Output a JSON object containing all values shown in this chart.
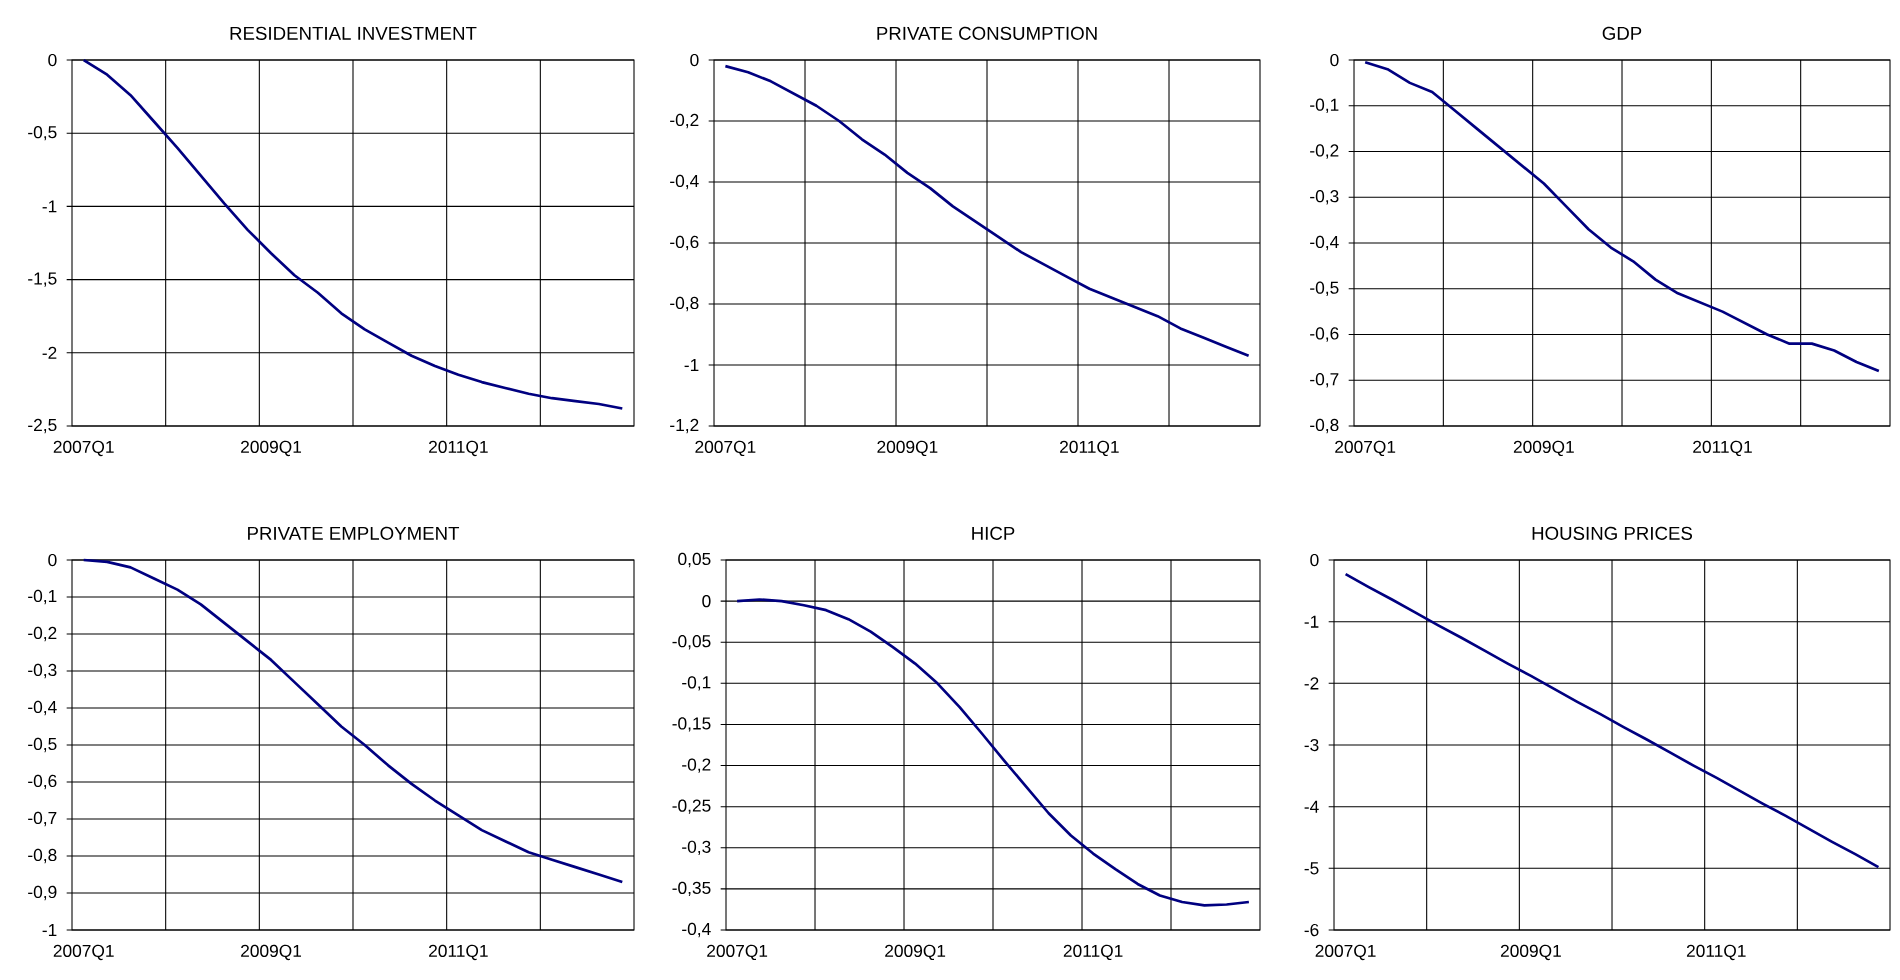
{
  "chart_data": [
    {
      "type": "line",
      "title": "RESIDENTIAL INVESTMENT",
      "categories": [
        "2007Q1",
        null,
        null,
        null,
        null,
        null,
        null,
        null,
        "2009Q1",
        null,
        null,
        null,
        null,
        null,
        null,
        null,
        "2011Q1",
        null,
        null,
        null,
        null,
        null,
        null,
        null
      ],
      "color": "#000080",
      "grid": true,
      "ylim": [
        -2.5,
        0
      ],
      "yticks": [
        0,
        {
          "value": -0.5,
          "label": "-0,5"
        },
        -1,
        {
          "value": -1.5,
          "label": "-1,5"
        },
        -2,
        {
          "value": -2.5,
          "label": "-2,5"
        }
      ],
      "values": [
        0,
        -0.1,
        -0.24,
        -0.42,
        -0.6,
        -0.79,
        -0.98,
        -1.16,
        -1.32,
        -1.47,
        -1.59,
        -1.73,
        -1.84,
        -1.93,
        -2.02,
        -2.09,
        -2.15,
        -2.2,
        -2.24,
        -2.28,
        -2.31,
        -2.33,
        -2.35,
        -2.38
      ]
    },
    {
      "type": "line",
      "title": "PRIVATE CONSUMPTION",
      "categories": [
        "2007Q1",
        null,
        null,
        null,
        null,
        null,
        null,
        null,
        "2009Q1",
        null,
        null,
        null,
        null,
        null,
        null,
        null,
        "2011Q1",
        null,
        null,
        null,
        null,
        null,
        null,
        null
      ],
      "color": "#000080",
      "grid": true,
      "ylim": [
        -1.2,
        0
      ],
      "yticks": [
        0,
        {
          "value": -0.2,
          "label": "-0,2"
        },
        {
          "value": -0.4,
          "label": "-0,4"
        },
        {
          "value": -0.6,
          "label": "-0,6"
        },
        {
          "value": -0.8,
          "label": "-0,8"
        },
        -1,
        {
          "value": -1.2,
          "label": "-1,2"
        }
      ],
      "values": [
        -0.02,
        -0.04,
        -0.07,
        -0.11,
        -0.15,
        -0.2,
        -0.26,
        -0.31,
        -0.37,
        -0.42,
        -0.48,
        -0.53,
        -0.58,
        -0.63,
        -0.67,
        -0.71,
        -0.75,
        -0.78,
        -0.81,
        -0.84,
        -0.88,
        -0.91,
        -0.94,
        -0.97
      ]
    },
    {
      "type": "line",
      "title": "GDP",
      "categories": [
        "2007Q1",
        null,
        null,
        null,
        null,
        null,
        null,
        null,
        "2009Q1",
        null,
        null,
        null,
        null,
        null,
        null,
        null,
        "2011Q1",
        null,
        null,
        null,
        null,
        null,
        null,
        null
      ],
      "color": "#000080",
      "grid": true,
      "ylim": [
        -0.8,
        0
      ],
      "yticks": [
        0,
        {
          "value": -0.1,
          "label": "-0,1"
        },
        {
          "value": -0.2,
          "label": "-0,2"
        },
        {
          "value": -0.3,
          "label": "-0,3"
        },
        {
          "value": -0.4,
          "label": "-0,4"
        },
        {
          "value": -0.5,
          "label": "-0,5"
        },
        {
          "value": -0.6,
          "label": "-0,6"
        },
        {
          "value": -0.7,
          "label": "-0,7"
        },
        {
          "value": -0.8,
          "label": "-0,8"
        }
      ],
      "values": [
        -0.005,
        -0.02,
        -0.05,
        -0.07,
        -0.11,
        -0.15,
        -0.19,
        -0.23,
        -0.27,
        -0.32,
        -0.37,
        -0.41,
        -0.44,
        -0.48,
        -0.51,
        -0.53,
        -0.55,
        -0.575,
        -0.6,
        -0.62,
        -0.62,
        -0.635,
        -0.66,
        -0.68
      ]
    },
    {
      "type": "line",
      "title": "PRIVATE EMPLOYMENT",
      "categories": [
        "2007Q1",
        null,
        null,
        null,
        null,
        null,
        null,
        null,
        "2009Q1",
        null,
        null,
        null,
        null,
        null,
        null,
        null,
        "2011Q1",
        null,
        null,
        null,
        null,
        null,
        null,
        null
      ],
      "color": "#000080",
      "grid": true,
      "ylim": [
        -1,
        0
      ],
      "yticks": [
        0,
        {
          "value": -0.1,
          "label": "-0,1"
        },
        {
          "value": -0.2,
          "label": "-0,2"
        },
        {
          "value": -0.3,
          "label": "-0,3"
        },
        {
          "value": -0.4,
          "label": "-0,4"
        },
        {
          "value": -0.5,
          "label": "-0,5"
        },
        {
          "value": -0.6,
          "label": "-0,6"
        },
        {
          "value": -0.7,
          "label": "-0,7"
        },
        {
          "value": -0.8,
          "label": "-0,8"
        },
        {
          "value": -0.9,
          "label": "-0,9"
        },
        -1
      ],
      "values": [
        0,
        -0.005,
        -0.02,
        -0.05,
        -0.08,
        -0.12,
        -0.17,
        -0.22,
        -0.27,
        -0.33,
        -0.39,
        -0.45,
        -0.5,
        -0.555,
        -0.605,
        -0.65,
        -0.69,
        -0.73,
        -0.76,
        -0.79,
        -0.81,
        -0.83,
        -0.85,
        -0.87
      ]
    },
    {
      "type": "line",
      "title": "HICP",
      "categories": [
        "2007Q1",
        null,
        null,
        null,
        null,
        null,
        null,
        null,
        "2009Q1",
        null,
        null,
        null,
        null,
        null,
        null,
        null,
        "2011Q1",
        null,
        null,
        null,
        null,
        null,
        null,
        null
      ],
      "color": "#000080",
      "grid": true,
      "ylim": [
        -0.4,
        0.05
      ],
      "yticks": [
        {
          "value": 0.05,
          "label": "0,05"
        },
        0,
        {
          "value": -0.05,
          "label": "-0,05"
        },
        {
          "value": -0.1,
          "label": "-0,1"
        },
        {
          "value": -0.15,
          "label": "-0,15"
        },
        {
          "value": -0.2,
          "label": "-0,2"
        },
        {
          "value": -0.25,
          "label": "-0,25"
        },
        {
          "value": -0.3,
          "label": "-0,3"
        },
        {
          "value": -0.35,
          "label": "-0,35"
        },
        {
          "value": -0.4,
          "label": "-0,4"
        }
      ],
      "values": [
        0,
        0.002,
        0,
        -0.005,
        -0.011,
        -0.022,
        -0.037,
        -0.056,
        -0.076,
        -0.1,
        -0.129,
        -0.161,
        -0.194,
        -0.226,
        -0.258,
        -0.285,
        -0.307,
        -0.326,
        -0.344,
        -0.358,
        -0.366,
        -0.37,
        -0.369,
        -0.366
      ]
    },
    {
      "type": "line",
      "title": "HOUSING PRICES",
      "categories": [
        "2007Q1",
        null,
        null,
        null,
        null,
        null,
        null,
        null,
        "2009Q1",
        null,
        null,
        null,
        null,
        null,
        null,
        null,
        "2011Q1",
        null,
        null,
        null,
        null,
        null,
        null,
        null
      ],
      "color": "#000080",
      "grid": true,
      "ylim": [
        -6,
        0
      ],
      "yticks": [
        0,
        -1,
        -2,
        -3,
        -4,
        -5,
        -6
      ],
      "values": [
        -0.23,
        -0.44,
        -0.64,
        -0.85,
        -1.06,
        -1.26,
        -1.47,
        -1.68,
        -1.88,
        -2.09,
        -2.3,
        -2.5,
        -2.71,
        -2.91,
        -3.12,
        -3.33,
        -3.53,
        -3.74,
        -3.95,
        -4.15,
        -4.36,
        -4.57,
        -4.77,
        -4.98
      ]
    }
  ]
}
